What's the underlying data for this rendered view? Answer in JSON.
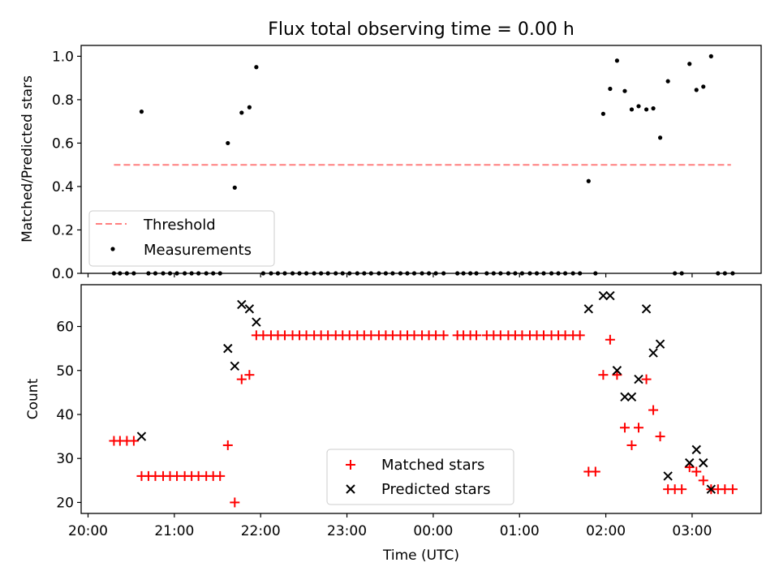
{
  "figure": {
    "title": "Flux total observing time = 0.00 h",
    "xlabel": "Time (UTC)",
    "x_ticks": [
      "20:00",
      "21:00",
      "22:00",
      "23:00",
      "00:00",
      "01:00",
      "02:00",
      "03:00"
    ],
    "x_tick_hours": [
      0,
      1,
      2,
      3,
      4,
      5,
      6,
      7
    ]
  },
  "chart_data": [
    {
      "type": "scatter",
      "ylabel": "Matched/Predicted stars",
      "ylim": [
        0,
        1.05
      ],
      "y_ticks": [
        "0.0",
        "0.2",
        "0.4",
        "0.6",
        "0.8",
        "1.0"
      ],
      "y_tick_values": [
        0,
        0.2,
        0.4,
        0.6,
        0.8,
        1.0
      ],
      "x_range_hours_after_20": [
        -0.08,
        7.8
      ],
      "legend": {
        "position": "lower-left",
        "entries": [
          "Threshold",
          "Measurements"
        ]
      },
      "threshold": {
        "name": "Threshold",
        "value": 0.5,
        "x_from": 0.3,
        "x_to": 7.45,
        "color": "#ff7f7f",
        "style": "dashed"
      },
      "series": [
        {
          "name": "Measurements",
          "color": "#000000",
          "points": [
            [
              0.3,
              0
            ],
            [
              0.37,
              0
            ],
            [
              0.45,
              0
            ],
            [
              0.53,
              0
            ],
            [
              0.62,
              0.745
            ],
            [
              0.7,
              0
            ],
            [
              0.78,
              0
            ],
            [
              0.87,
              0
            ],
            [
              0.95,
              0
            ],
            [
              1.03,
              0
            ],
            [
              1.12,
              0
            ],
            [
              1.2,
              0
            ],
            [
              1.28,
              0
            ],
            [
              1.37,
              0
            ],
            [
              1.45,
              0
            ],
            [
              1.53,
              0
            ],
            [
              1.62,
              0.6
            ],
            [
              1.7,
              0.395
            ],
            [
              1.78,
              0.74
            ],
            [
              1.87,
              0.765
            ],
            [
              1.95,
              0.95
            ],
            [
              2.03,
              0
            ],
            [
              2.12,
              0
            ],
            [
              2.2,
              0
            ],
            [
              2.28,
              0
            ],
            [
              2.37,
              0
            ],
            [
              2.45,
              0
            ],
            [
              2.53,
              0
            ],
            [
              2.62,
              0
            ],
            [
              2.7,
              0
            ],
            [
              2.78,
              0
            ],
            [
              2.87,
              0
            ],
            [
              2.95,
              0
            ],
            [
              3.03,
              0
            ],
            [
              3.12,
              0
            ],
            [
              3.2,
              0
            ],
            [
              3.28,
              0
            ],
            [
              3.37,
              0
            ],
            [
              3.45,
              0
            ],
            [
              3.53,
              0
            ],
            [
              3.62,
              0
            ],
            [
              3.7,
              0
            ],
            [
              3.78,
              0
            ],
            [
              3.87,
              0
            ],
            [
              3.95,
              0
            ],
            [
              4.03,
              0
            ],
            [
              4.12,
              0
            ],
            [
              4.28,
              0
            ],
            [
              4.35,
              0
            ],
            [
              4.43,
              0
            ],
            [
              4.5,
              0
            ],
            [
              4.62,
              0
            ],
            [
              4.7,
              0
            ],
            [
              4.78,
              0
            ],
            [
              4.87,
              0
            ],
            [
              4.95,
              0
            ],
            [
              5.03,
              0
            ],
            [
              5.12,
              0
            ],
            [
              5.2,
              0
            ],
            [
              5.28,
              0
            ],
            [
              5.37,
              0
            ],
            [
              5.45,
              0
            ],
            [
              5.53,
              0
            ],
            [
              5.62,
              0
            ],
            [
              5.7,
              0
            ],
            [
              5.8,
              0.425
            ],
            [
              5.88,
              0
            ],
            [
              5.97,
              0.735
            ],
            [
              6.05,
              0.85
            ],
            [
              6.13,
              0.98
            ],
            [
              6.22,
              0.84
            ],
            [
              6.3,
              0.755
            ],
            [
              6.38,
              0.77
            ],
            [
              6.47,
              0.755
            ],
            [
              6.55,
              0.76
            ],
            [
              6.63,
              0.625
            ],
            [
              6.72,
              0.885
            ],
            [
              6.8,
              0
            ],
            [
              6.88,
              0
            ],
            [
              6.97,
              0.965
            ],
            [
              7.05,
              0.845
            ],
            [
              7.13,
              0.86
            ],
            [
              7.22,
              1.0
            ],
            [
              7.3,
              0
            ],
            [
              7.38,
              0
            ],
            [
              7.47,
              0
            ]
          ]
        }
      ]
    },
    {
      "type": "scatter",
      "ylabel": "Count",
      "ylim": [
        17.5,
        69.5
      ],
      "y_ticks": [
        "20",
        "30",
        "40",
        "50",
        "60"
      ],
      "y_tick_values": [
        20,
        30,
        40,
        50,
        60
      ],
      "x_range_hours_after_20": [
        -0.08,
        7.8
      ],
      "legend": {
        "position": "lower-center",
        "entries": [
          "Matched stars",
          "Predicted stars"
        ]
      },
      "series": [
        {
          "name": "Matched stars",
          "marker": "plus",
          "color": "#ff0000",
          "points": [
            [
              0.3,
              34
            ],
            [
              0.37,
              34
            ],
            [
              0.45,
              34
            ],
            [
              0.53,
              34
            ],
            [
              0.62,
              26
            ],
            [
              0.7,
              26
            ],
            [
              0.78,
              26
            ],
            [
              0.87,
              26
            ],
            [
              0.95,
              26
            ],
            [
              1.03,
              26
            ],
            [
              1.12,
              26
            ],
            [
              1.2,
              26
            ],
            [
              1.28,
              26
            ],
            [
              1.37,
              26
            ],
            [
              1.45,
              26
            ],
            [
              1.53,
              26
            ],
            [
              1.62,
              33
            ],
            [
              1.7,
              20
            ],
            [
              1.78,
              48
            ],
            [
              1.87,
              49
            ],
            [
              1.95,
              58
            ],
            [
              2.03,
              58
            ],
            [
              2.12,
              58
            ],
            [
              2.2,
              58
            ],
            [
              2.28,
              58
            ],
            [
              2.37,
              58
            ],
            [
              2.45,
              58
            ],
            [
              2.53,
              58
            ],
            [
              2.62,
              58
            ],
            [
              2.7,
              58
            ],
            [
              2.78,
              58
            ],
            [
              2.87,
              58
            ],
            [
              2.95,
              58
            ],
            [
              3.03,
              58
            ],
            [
              3.12,
              58
            ],
            [
              3.2,
              58
            ],
            [
              3.28,
              58
            ],
            [
              3.37,
              58
            ],
            [
              3.45,
              58
            ],
            [
              3.53,
              58
            ],
            [
              3.62,
              58
            ],
            [
              3.7,
              58
            ],
            [
              3.78,
              58
            ],
            [
              3.87,
              58
            ],
            [
              3.95,
              58
            ],
            [
              4.03,
              58
            ],
            [
              4.12,
              58
            ],
            [
              4.28,
              58
            ],
            [
              4.35,
              58
            ],
            [
              4.43,
              58
            ],
            [
              4.5,
              58
            ],
            [
              4.62,
              58
            ],
            [
              4.7,
              58
            ],
            [
              4.78,
              58
            ],
            [
              4.87,
              58
            ],
            [
              4.95,
              58
            ],
            [
              5.03,
              58
            ],
            [
              5.12,
              58
            ],
            [
              5.2,
              58
            ],
            [
              5.28,
              58
            ],
            [
              5.37,
              58
            ],
            [
              5.45,
              58
            ],
            [
              5.53,
              58
            ],
            [
              5.62,
              58
            ],
            [
              5.7,
              58
            ],
            [
              5.8,
              27
            ],
            [
              5.88,
              27
            ],
            [
              5.97,
              49
            ],
            [
              6.05,
              57
            ],
            [
              6.13,
              49
            ],
            [
              6.22,
              37
            ],
            [
              6.3,
              33
            ],
            [
              6.38,
              37
            ],
            [
              6.47,
              48
            ],
            [
              6.55,
              41
            ],
            [
              6.63,
              35
            ],
            [
              6.72,
              23
            ],
            [
              6.8,
              23
            ],
            [
              6.88,
              23
            ],
            [
              6.97,
              28
            ],
            [
              7.05,
              27
            ],
            [
              7.13,
              25
            ],
            [
              7.22,
              23
            ],
            [
              7.3,
              23
            ],
            [
              7.38,
              23
            ],
            [
              7.47,
              23
            ]
          ]
        },
        {
          "name": "Predicted stars",
          "marker": "x",
          "color": "#000000",
          "points": [
            [
              0.62,
              35
            ],
            [
              1.62,
              55
            ],
            [
              1.7,
              51
            ],
            [
              1.78,
              65
            ],
            [
              1.87,
              64
            ],
            [
              1.95,
              61
            ],
            [
              5.8,
              64
            ],
            [
              5.97,
              67
            ],
            [
              6.05,
              67
            ],
            [
              6.13,
              50
            ],
            [
              6.22,
              44
            ],
            [
              6.3,
              44
            ],
            [
              6.38,
              48
            ],
            [
              6.47,
              64
            ],
            [
              6.55,
              54
            ],
            [
              6.63,
              56
            ],
            [
              6.72,
              26
            ],
            [
              6.97,
              29
            ],
            [
              7.05,
              32
            ],
            [
              7.13,
              29
            ],
            [
              7.22,
              23
            ]
          ]
        }
      ]
    }
  ]
}
